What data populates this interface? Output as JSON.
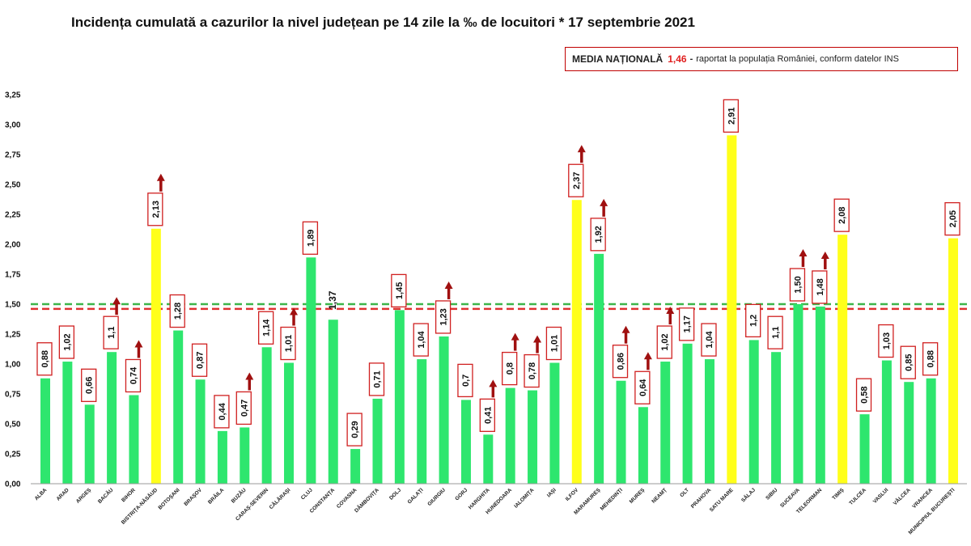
{
  "title": "Incidența cumulată a cazurilor la nivel județean pe 14 zile la ‰ de locuitori * 17 septembrie 2021",
  "legend_box": {
    "label": "MEDIA NAȚIONALĂ",
    "value": "1,46",
    "dash": "-",
    "note": "raportat la populația României, conform datelor INS"
  },
  "colors": {
    "green": "#2ee66e",
    "yellow": "#ffff1a",
    "arrow": "#a01010",
    "label_border": "#d02020",
    "national_line": "#e03030",
    "green_line": "#3db54a"
  },
  "chart_data": {
    "type": "bar",
    "title": "Incidența cumulată a cazurilor la nivel județean pe 14 zile la ‰ de locuitori * 17 septembrie 2021",
    "ylim": [
      0,
      3.25
    ],
    "yticks": [
      "0,00",
      "0,25",
      "0,50",
      "0,75",
      "1,00",
      "1,25",
      "1,50",
      "1,75",
      "2,00",
      "2,25",
      "2,50",
      "2,75",
      "3,00",
      "3,25"
    ],
    "reference_lines": [
      {
        "name": "media națională",
        "value": 1.46,
        "color": "red",
        "style": "dashed"
      },
      {
        "name": "prag 1,5",
        "value": 1.5,
        "color": "green",
        "style": "dashed"
      }
    ],
    "bars": [
      {
        "category": "ALBA",
        "value": 0.88,
        "label": "0,88",
        "color": "green",
        "arrow": false,
        "boxed": true
      },
      {
        "category": "ARAD",
        "value": 1.02,
        "label": "1,02",
        "color": "green",
        "arrow": false,
        "boxed": true
      },
      {
        "category": "ARGEȘ",
        "value": 0.66,
        "label": "0,66",
        "color": "green",
        "arrow": false,
        "boxed": true
      },
      {
        "category": "BACĂU",
        "value": 1.1,
        "label": "1,1",
        "color": "green",
        "arrow": true,
        "boxed": true
      },
      {
        "category": "BIHOR",
        "value": 0.74,
        "label": "0,74",
        "color": "green",
        "arrow": true,
        "boxed": true
      },
      {
        "category": "BISTRIȚA-NĂSĂUD",
        "value": 2.13,
        "label": "2,13",
        "color": "yellow",
        "arrow": true,
        "boxed": true
      },
      {
        "category": "BOTOȘANI",
        "value": 1.28,
        "label": "1,28",
        "color": "green",
        "arrow": false,
        "boxed": true
      },
      {
        "category": "BRAȘOV",
        "value": 0.87,
        "label": "0,87",
        "color": "green",
        "arrow": false,
        "boxed": true
      },
      {
        "category": "BRĂILA",
        "value": 0.44,
        "label": "0,44",
        "color": "green",
        "arrow": false,
        "boxed": true
      },
      {
        "category": "BUZĂU",
        "value": 0.47,
        "label": "0,47",
        "color": "green",
        "arrow": true,
        "boxed": true
      },
      {
        "category": "CARAȘ-SEVERIN",
        "value": 1.14,
        "label": "1,14",
        "color": "green",
        "arrow": false,
        "boxed": true
      },
      {
        "category": "CĂLĂRAȘI",
        "value": 1.01,
        "label": "1,01",
        "color": "green",
        "arrow": true,
        "boxed": true
      },
      {
        "category": "CLUJ",
        "value": 1.89,
        "label": "1,89",
        "color": "green",
        "arrow": false,
        "boxed": true
      },
      {
        "category": "CONSTANȚA",
        "value": 1.37,
        "label": "1,37",
        "color": "green",
        "arrow": false,
        "boxed": false
      },
      {
        "category": "COVASNA",
        "value": 0.29,
        "label": "0,29",
        "color": "green",
        "arrow": false,
        "boxed": true
      },
      {
        "category": "DÂMBOVIȚA",
        "value": 0.71,
        "label": "0,71",
        "color": "green",
        "arrow": false,
        "boxed": true
      },
      {
        "category": "DOLJ",
        "value": 1.45,
        "label": "1,45",
        "color": "green",
        "arrow": false,
        "boxed": true
      },
      {
        "category": "GALAȚI",
        "value": 1.04,
        "label": "1,04",
        "color": "green",
        "arrow": false,
        "boxed": true
      },
      {
        "category": "GIURGIU",
        "value": 1.23,
        "label": "1,23",
        "color": "green",
        "arrow": true,
        "boxed": true
      },
      {
        "category": "GORJ",
        "value": 0.7,
        "label": "0,7",
        "color": "green",
        "arrow": false,
        "boxed": true
      },
      {
        "category": "HARGHITA",
        "value": 0.41,
        "label": "0,41",
        "color": "green",
        "arrow": true,
        "boxed": true
      },
      {
        "category": "HUNEDOARA",
        "value": 0.8,
        "label": "0,8",
        "color": "green",
        "arrow": true,
        "boxed": true
      },
      {
        "category": "IALOMIȚA",
        "value": 0.78,
        "label": "0,78",
        "color": "green",
        "arrow": true,
        "boxed": true
      },
      {
        "category": "IAȘI",
        "value": 1.01,
        "label": "1,01",
        "color": "green",
        "arrow": false,
        "boxed": true
      },
      {
        "category": "ILFOV",
        "value": 2.37,
        "label": "2,37",
        "color": "yellow",
        "arrow": true,
        "boxed": true
      },
      {
        "category": "MARAMUREȘ",
        "value": 1.92,
        "label": "1,92",
        "color": "green",
        "arrow": true,
        "boxed": true
      },
      {
        "category": "MEHEDINȚI",
        "value": 0.86,
        "label": "0,86",
        "color": "green",
        "arrow": true,
        "boxed": true
      },
      {
        "category": "MUREȘ",
        "value": 0.64,
        "label": "0,64",
        "color": "green",
        "arrow": true,
        "boxed": true
      },
      {
        "category": "NEAMȚ",
        "value": 1.02,
        "label": "1,02",
        "color": "green",
        "arrow": true,
        "boxed": true
      },
      {
        "category": "OLT",
        "value": 1.17,
        "label": "1,17",
        "color": "green",
        "arrow": false,
        "boxed": true
      },
      {
        "category": "PRAHOVA",
        "value": 1.04,
        "label": "1,04",
        "color": "green",
        "arrow": false,
        "boxed": true
      },
      {
        "category": "SATU MARE",
        "value": 2.91,
        "label": "2,91",
        "color": "yellow",
        "arrow": false,
        "boxed": true
      },
      {
        "category": "SĂLAJ",
        "value": 1.2,
        "label": "1,2",
        "color": "green",
        "arrow": false,
        "boxed": true
      },
      {
        "category": "SIBIU",
        "value": 1.1,
        "label": "1,1",
        "color": "green",
        "arrow": false,
        "boxed": true
      },
      {
        "category": "SUCEAVA",
        "value": 1.5,
        "label": "1,50",
        "color": "green",
        "arrow": true,
        "boxed": true
      },
      {
        "category": "TELEORMAN",
        "value": 1.48,
        "label": "1,48",
        "color": "green",
        "arrow": true,
        "boxed": true
      },
      {
        "category": "TIMIȘ",
        "value": 2.08,
        "label": "2,08",
        "color": "yellow",
        "arrow": false,
        "boxed": true
      },
      {
        "category": "TULCEA",
        "value": 0.58,
        "label": "0,58",
        "color": "green",
        "arrow": false,
        "boxed": true
      },
      {
        "category": "VASLUI",
        "value": 1.03,
        "label": "1,03",
        "color": "green",
        "arrow": false,
        "boxed": true
      },
      {
        "category": "VÂLCEA",
        "value": 0.85,
        "label": "0,85",
        "color": "green",
        "arrow": false,
        "boxed": true
      },
      {
        "category": "VRANCEA",
        "value": 0.88,
        "label": "0,88",
        "color": "green",
        "arrow": false,
        "boxed": true
      },
      {
        "category": "MUNICIPIUL BUCUREȘTI",
        "value": 2.05,
        "label": "2,05",
        "color": "yellow",
        "arrow": false,
        "boxed": true
      }
    ]
  }
}
